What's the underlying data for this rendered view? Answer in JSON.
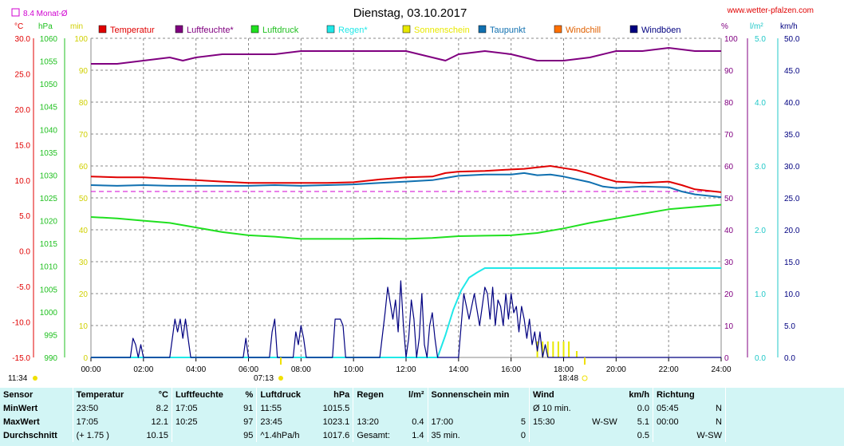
{
  "header": {
    "title": "Dienstag, 03.10.2017",
    "site": "www.wetter-pfalzen.com",
    "month_avg_label": "8.4 Monat-Ø"
  },
  "colors": {
    "temperature": "#e00000",
    "humidity": "#800080",
    "pressure": "#20e020",
    "rain": "#20e8e8",
    "sunshine": "#e8e800",
    "dewpoint": "#1070b0",
    "windchill": "#ff7000",
    "gust": "#000080",
    "month_avg": "#d000d0"
  },
  "sun": {
    "rise_left": "11:34",
    "sunrise": "07:13",
    "sunset": "18:48"
  },
  "chart_data": {
    "type": "line",
    "x_ticks": [
      "00:00",
      "02:00",
      "04:00",
      "06:00",
      "08:00",
      "10:00",
      "12:00",
      "14:00",
      "16:00",
      "18:00",
      "20:00",
      "22:00",
      "24:00"
    ],
    "xlim": [
      "00:00",
      "24:00"
    ],
    "grid": true,
    "legend_placement": "top",
    "axes": {
      "temperature": {
        "unit": "°C",
        "ticks": [
          "30.0",
          "25.0",
          "20.0",
          "15.0",
          "10.0",
          "5.0",
          "0.0",
          "-5.0",
          "-10.0",
          "-15.0"
        ],
        "ylim": [
          -15,
          30
        ]
      },
      "pressure": {
        "unit": "hPa",
        "ticks": [
          "1060",
          "1055",
          "1050",
          "1045",
          "1040",
          "1035",
          "1030",
          "1025",
          "1020",
          "1015",
          "1010",
          "1005",
          "1000",
          "995",
          "990"
        ],
        "ylim": [
          990,
          1060
        ]
      },
      "sunshine_min": {
        "unit": "min",
        "ticks": [
          "100",
          "90",
          "80",
          "70",
          "60",
          "50",
          "40",
          "30",
          "20",
          "10",
          "0"
        ],
        "ylim": [
          0,
          100
        ]
      },
      "humidity": {
        "unit": "%",
        "ticks": [
          "100",
          "90",
          "80",
          "70",
          "60",
          "50",
          "40",
          "30",
          "20",
          "10",
          "0"
        ],
        "ylim": [
          0,
          100
        ]
      },
      "rain": {
        "unit": "l/m²",
        "ticks": [
          "5.0",
          "4.0",
          "3.0",
          "2.0",
          "1.0",
          "0.0"
        ],
        "ylim": [
          0,
          5
        ]
      },
      "wind": {
        "unit": "km/h",
        "ticks": [
          "50.0",
          "45.0",
          "40.0",
          "35.0",
          "30.0",
          "25.0",
          "20.0",
          "15.0",
          "10.0",
          "5.0",
          "0.0"
        ],
        "ylim": [
          0,
          50
        ]
      }
    },
    "legend": [
      "Temperatur",
      "Luftfeuchte*",
      "Luftdruck",
      "Regen*",
      "Sonnenschein",
      "Taupunkt",
      "Windchill",
      "Windböen"
    ],
    "month_avg_temperature": 8.4,
    "series": [
      {
        "name": "Temperatur",
        "axis": "temperature",
        "color": "#e00000",
        "x": [
          0,
          1,
          2,
          3,
          4,
          5,
          6,
          7,
          8,
          9,
          10,
          11,
          12,
          13,
          13.5,
          14,
          15,
          16,
          16.5,
          17,
          17.5,
          18,
          18.5,
          19,
          19.5,
          20,
          20.5,
          21,
          22,
          22.5,
          23,
          24
        ],
        "y": [
          10.5,
          10.4,
          10.4,
          10.2,
          10.0,
          9.8,
          9.6,
          9.6,
          9.6,
          9.6,
          9.7,
          10.1,
          10.4,
          10.5,
          11.0,
          11.2,
          11.3,
          11.5,
          11.6,
          11.8,
          12.0,
          11.7,
          11.4,
          10.9,
          10.3,
          9.8,
          9.7,
          9.6,
          9.8,
          9.3,
          8.7,
          8.3
        ]
      },
      {
        "name": "Luftfeuchte*",
        "axis": "humidity",
        "color": "#800080",
        "x": [
          0,
          1,
          2,
          3,
          3.5,
          4,
          5,
          6,
          7,
          8,
          9,
          10,
          11,
          12,
          13,
          13.5,
          14,
          15,
          16,
          16.5,
          17,
          17.5,
          18,
          19,
          20,
          21,
          22,
          23,
          24
        ],
        "y": [
          92,
          92,
          93,
          94,
          93,
          94,
          95,
          95,
          95,
          96,
          96,
          96,
          96,
          96,
          94,
          93,
          95,
          96,
          95,
          94,
          93,
          93,
          93,
          94,
          96,
          96,
          97,
          96,
          96
        ]
      },
      {
        "name": "Luftdruck",
        "axis": "pressure",
        "color": "#20e020",
        "x": [
          0,
          1,
          2,
          3,
          4,
          5,
          6,
          7,
          8,
          9,
          10,
          11,
          12,
          13,
          14,
          15,
          16,
          17,
          18,
          19,
          20,
          21,
          22,
          23,
          24
        ],
        "y": [
          1020.8,
          1020.5,
          1020.0,
          1019.5,
          1018.5,
          1017.5,
          1016.8,
          1016.5,
          1016.0,
          1016.0,
          1016.0,
          1016.1,
          1016.0,
          1016.2,
          1016.6,
          1016.7,
          1016.8,
          1017.3,
          1018.3,
          1019.5,
          1020.5,
          1021.5,
          1022.5,
          1023.0,
          1023.5
        ]
      },
      {
        "name": "Regen*",
        "axis": "rain",
        "color": "#20e8e8",
        "x": [
          0,
          13.2,
          13.5,
          13.8,
          14.1,
          14.4,
          14.7,
          15.0,
          16,
          17,
          18,
          19,
          20,
          21,
          22,
          23,
          24
        ],
        "y": [
          0,
          0,
          0.35,
          0.75,
          1.05,
          1.25,
          1.33,
          1.4,
          1.4,
          1.4,
          1.4,
          1.4,
          1.4,
          1.4,
          1.4,
          1.4,
          1.4
        ]
      },
      {
        "name": "Sonnenschein",
        "axis": "sunshine_min",
        "color": "#e8e800",
        "x": [
          17.0,
          17.2,
          17.4,
          17.6,
          17.8,
          18.0,
          18.2,
          18.5
        ],
        "y": [
          5,
          5,
          5,
          5,
          5,
          5,
          5,
          2
        ]
      },
      {
        "name": "Taupunkt",
        "axis": "temperature",
        "color": "#1070b0",
        "x": [
          0,
          1,
          2,
          3,
          4,
          5,
          6,
          7,
          8,
          9,
          10,
          11,
          12,
          13,
          13.5,
          14,
          15,
          16,
          16.5,
          17,
          17.5,
          18,
          18.5,
          19,
          19.5,
          20,
          20.5,
          21,
          22,
          22.5,
          23,
          24
        ],
        "y": [
          9.3,
          9.2,
          9.3,
          9.2,
          9.2,
          9.2,
          9.2,
          9.3,
          9.2,
          9.3,
          9.4,
          9.6,
          9.8,
          10.0,
          10.3,
          10.6,
          10.8,
          10.8,
          11.0,
          10.7,
          10.8,
          10.5,
          10.1,
          9.7,
          9.1,
          8.9,
          9.0,
          9.1,
          9.0,
          8.4,
          8.0,
          7.6
        ]
      },
      {
        "name": "Windböen",
        "axis": "wind",
        "color": "#000080",
        "x": [
          0,
          1.5,
          1.6,
          1.7,
          1.8,
          1.9,
          2.0,
          3.0,
          3.2,
          3.3,
          3.4,
          3.5,
          3.6,
          3.7,
          3.8,
          5.8,
          5.9,
          6.0,
          6.8,
          6.9,
          7.0,
          7.1,
          7.7,
          7.8,
          7.9,
          8.0,
          8.1,
          8.2,
          9.2,
          9.3,
          9.4,
          9.5,
          9.6,
          9.7,
          11.0,
          11.2,
          11.3,
          11.5,
          11.6,
          11.7,
          11.8,
          11.9,
          12.0,
          12.1,
          12.2,
          12.3,
          12.4,
          12.5,
          12.6,
          12.7,
          12.8,
          12.9,
          13.0,
          13.1,
          13.2,
          13.3,
          13.4,
          14.0,
          14.2,
          14.4,
          14.6,
          14.8,
          15.0,
          15.1,
          15.2,
          15.3,
          15.4,
          15.5,
          15.6,
          15.7,
          15.8,
          15.9,
          16.0,
          16.1,
          16.2,
          16.3,
          16.4,
          16.5,
          16.6,
          16.7,
          16.8,
          16.9,
          17.0,
          17.1,
          17.2,
          17.3,
          17.4,
          24
        ],
        "y": [
          0,
          0,
          3,
          2,
          0,
          2,
          0,
          0,
          6,
          4,
          6,
          3,
          6,
          3,
          0,
          0,
          3,
          0,
          0,
          4,
          6,
          0,
          0,
          4,
          2,
          5,
          3,
          0,
          0,
          6,
          6,
          6,
          5,
          0,
          0,
          7,
          11,
          6,
          9,
          4,
          12,
          5,
          0,
          3,
          9,
          6,
          0,
          3,
          10,
          2,
          0,
          5,
          7,
          3,
          0,
          0,
          0,
          0,
          10,
          6,
          10,
          5,
          11,
          10,
          6,
          11,
          5,
          9,
          8,
          5,
          10,
          6,
          10,
          7,
          8,
          4,
          8,
          6,
          3,
          6,
          2,
          4,
          1,
          4,
          0,
          2,
          0,
          0
        ]
      }
    ]
  },
  "stats": {
    "headers": {
      "sensor": "Sensor",
      "temp": "Temperatur",
      "temp_unit": "°C",
      "hum": "Luftfeuchte",
      "hum_unit": "%",
      "press": "Luftdruck",
      "press_unit": "hPa",
      "rain": "Regen",
      "rain_unit": "l/m²",
      "sun": "Sonnenschein min",
      "wind": "Wind",
      "wind_unit": "km/h",
      "dir": "Richtung"
    },
    "rows": [
      {
        "label": "MinWert",
        "temp_time": "23:50",
        "temp_val": "8.2",
        "hum_time": "17:05",
        "hum_val": "91",
        "press_time": "11:55",
        "press_val": "1015.5",
        "rain_time": "",
        "rain_val": "",
        "sun_time": "",
        "sun_val": "",
        "wind_time": "Ø 10 min.",
        "wind_dir": "",
        "wind_val": "0.0",
        "dir_time": "05:45",
        "dir_val": "N"
      },
      {
        "label": "MaxWert",
        "temp_time": "17:05",
        "temp_val": "12.1",
        "hum_time": "10:25",
        "hum_val": "97",
        "press_time": "23:45",
        "press_val": "1023.1",
        "rain_time": "13:20",
        "rain_val": "0.4",
        "sun_time": "17:00",
        "sun_val": "5",
        "wind_time": "15:30",
        "wind_dir": "W-SW",
        "wind_val": "5.1",
        "dir_time": "00:00",
        "dir_val": "N"
      },
      {
        "label": "Durchschnitt",
        "temp_time": "(+ 1.75 )",
        "temp_val": "10.15",
        "hum_time": "",
        "hum_val": "95",
        "press_time": "^1.4hPa/h",
        "press_val": "1017.6",
        "rain_time": "Gesamt:",
        "rain_val": "1.4",
        "sun_time": "35 min.",
        "sun_val": "0",
        "wind_time": "",
        "wind_dir": "",
        "wind_val": "0.5",
        "dir_time": "",
        "dir_val": "W-SW"
      }
    ]
  }
}
